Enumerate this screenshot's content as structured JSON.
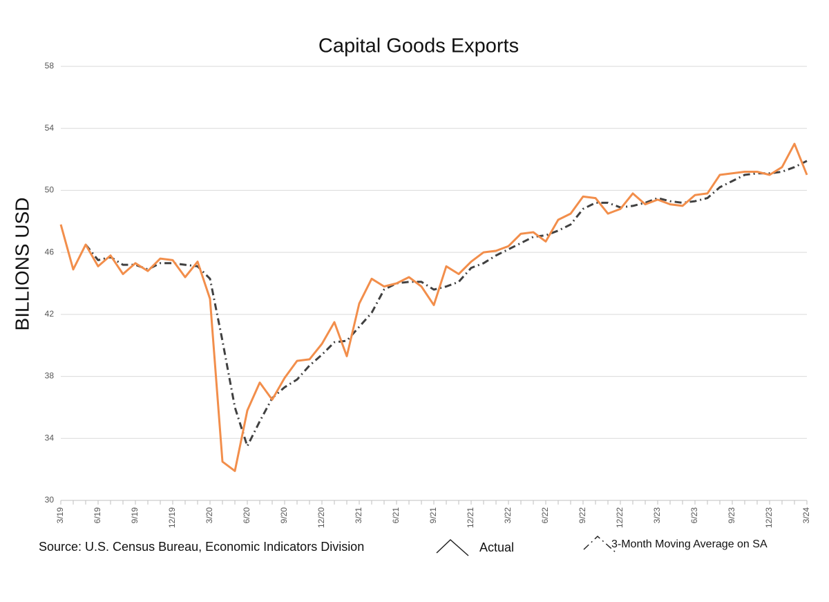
{
  "chart_data": {
    "type": "line",
    "title": "Capital Goods Exports",
    "y_label": "BILLIONS USD",
    "source": "Source: U.S. Census Bureau, Economic Indicators Division",
    "categories": [
      "3/19",
      null,
      null,
      "6/19",
      null,
      null,
      "9/19",
      null,
      null,
      "12/19",
      null,
      null,
      "3/20",
      null,
      null,
      "6/20",
      null,
      null,
      "9/20",
      null,
      null,
      "12/20",
      null,
      null,
      "3/21",
      null,
      null,
      "6/21",
      null,
      null,
      "9/21",
      null,
      null,
      "12/21",
      null,
      null,
      "3/22",
      null,
      null,
      "6/22",
      null,
      null,
      "9/22",
      null,
      null,
      "12/22",
      null,
      null,
      "3/23",
      null,
      null,
      "6/23",
      null,
      null,
      "9/23",
      null,
      null,
      "12/23",
      null,
      null,
      "3/24"
    ],
    "series": [
      {
        "name": "Actual",
        "color": "#f28e4b",
        "dash": "solid",
        "values": [
          47.8,
          44.9,
          46.5,
          45.1,
          45.8,
          44.6,
          45.3,
          44.8,
          45.6,
          45.5,
          44.4,
          45.4,
          43.0,
          32.5,
          31.9,
          35.8,
          37.6,
          36.5,
          37.9,
          39.0,
          39.1,
          40.1,
          41.5,
          39.3,
          42.7,
          44.3,
          43.8,
          44.0,
          44.4,
          43.8,
          42.6,
          45.1,
          44.6,
          45.4,
          46.0,
          46.1,
          46.4,
          47.2,
          47.3,
          46.7,
          48.1,
          48.5,
          49.6,
          49.5,
          48.5,
          48.8,
          49.8,
          49.1,
          49.4,
          49.1,
          49.0,
          49.7,
          49.8,
          51.0,
          51.1,
          51.2,
          51.2,
          51.0,
          51.5,
          53.0,
          51.0
        ]
      },
      {
        "name": "3-Month Moving Average on SA",
        "color": "#404040",
        "dash": "dashdot",
        "values": [
          null,
          null,
          46.5,
          45.5,
          45.7,
          45.2,
          45.2,
          44.9,
          45.3,
          45.3,
          45.2,
          45.1,
          44.3,
          40.3,
          36.0,
          33.5,
          35.1,
          36.6,
          37.3,
          37.8,
          38.7,
          39.4,
          40.2,
          40.3,
          41.2,
          42.1,
          43.6,
          44.0,
          44.1,
          44.1,
          43.6,
          43.8,
          44.1,
          45.0,
          45.3,
          45.8,
          46.2,
          46.6,
          47.0,
          47.1,
          47.4,
          47.8,
          48.8,
          49.2,
          49.2,
          48.9,
          49.0,
          49.2,
          49.5,
          49.3,
          49.2,
          49.3,
          49.5,
          50.2,
          50.6,
          51.0,
          51.1,
          51.1,
          51.2,
          51.5,
          51.9
        ]
      }
    ],
    "ylim": [
      30,
      58
    ],
    "yticks": [
      30,
      34,
      38,
      42,
      46,
      50,
      54,
      58
    ],
    "grid": true,
    "legend": "bottom"
  }
}
